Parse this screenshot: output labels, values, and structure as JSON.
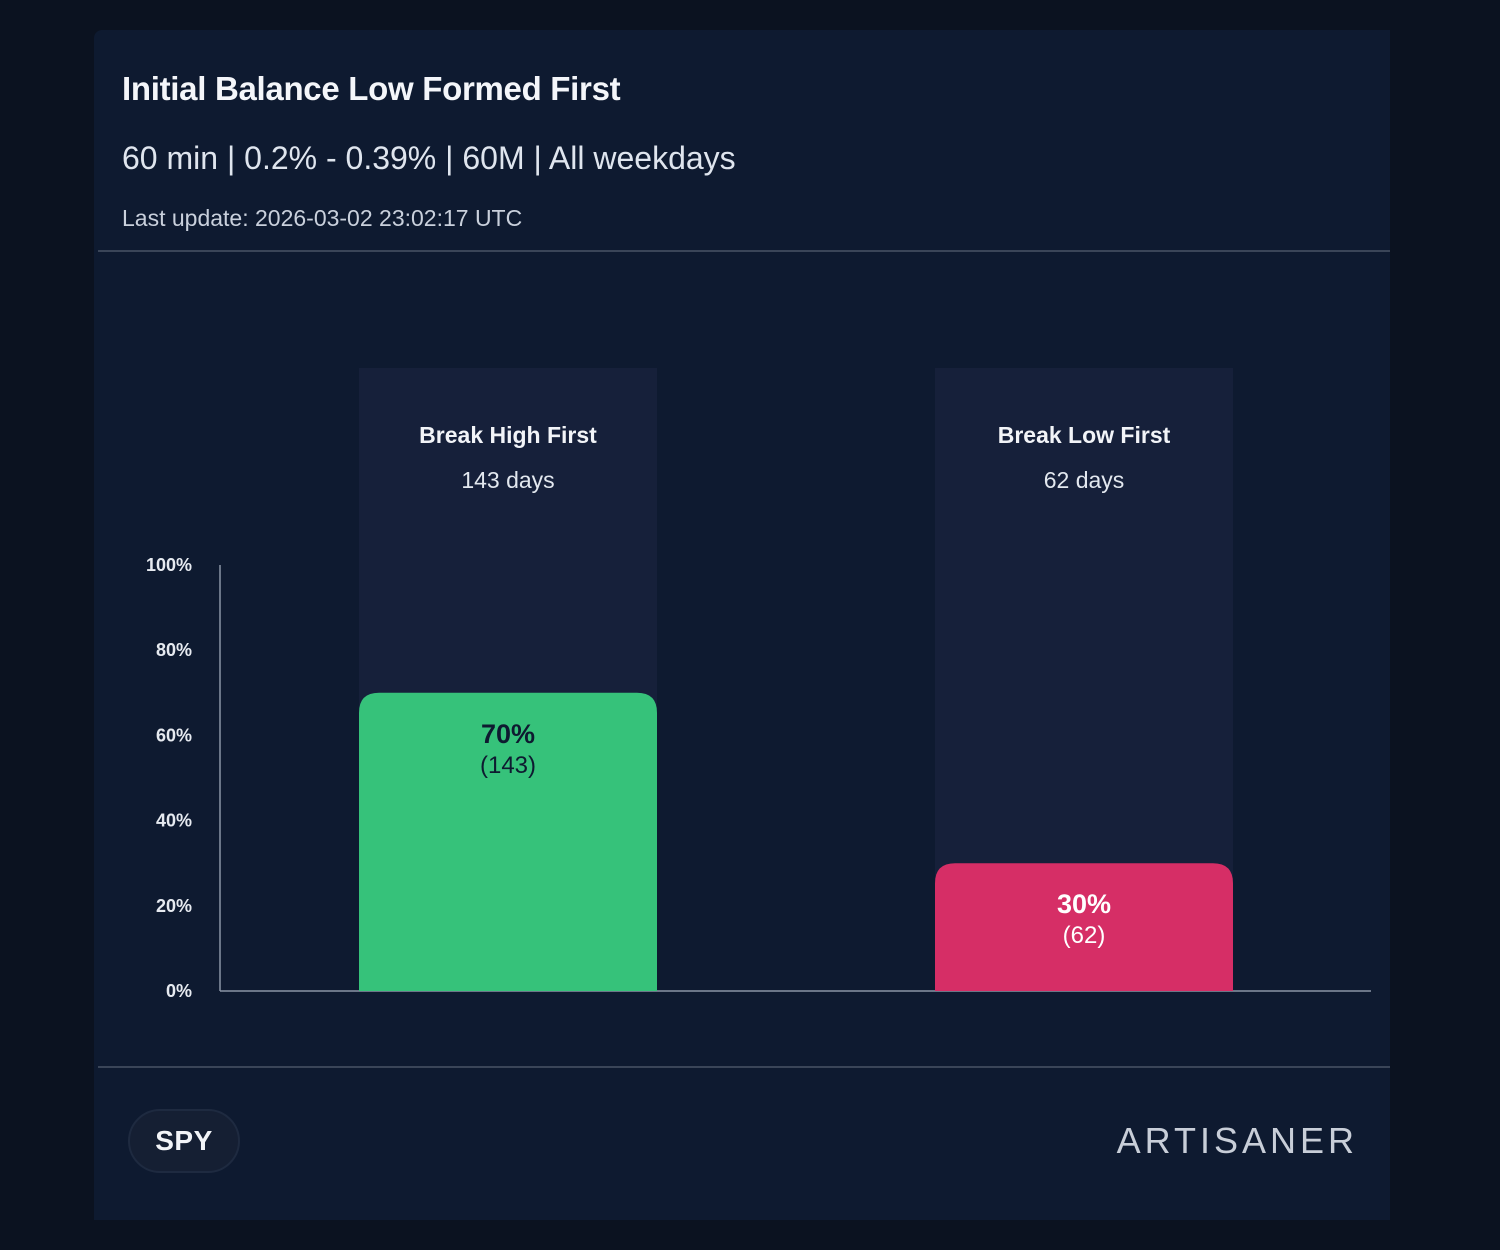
{
  "card": {
    "title": "Initial Balance Low Formed First",
    "subtitle": "60 min | 0.2% - 0.39% | 60M | All weekdays",
    "last_update": "Last update: 2026-03-02 23:02:17 UTC"
  },
  "footer": {
    "ticker": "SPY",
    "brand": "ARTISANER"
  },
  "colors": {
    "background": "#0b1220",
    "card": "#0e1a30",
    "track": "#16203a",
    "high": "#36c27a",
    "low": "#d62e66"
  },
  "chart_data": {
    "type": "bar",
    "categories": [
      "Break High First",
      "Break Low First"
    ],
    "category_subtitles": [
      "143 days",
      "62 days"
    ],
    "values": [
      70,
      30
    ],
    "counts": [
      "(143)",
      "(62)"
    ],
    "value_labels": [
      "70%",
      "30%"
    ],
    "bar_colors": [
      "#36c27a",
      "#d62e66"
    ],
    "value_label_colors": [
      "#0e1a30",
      "#ffffff"
    ],
    "yticks": [
      0,
      20,
      40,
      60,
      80,
      100
    ],
    "ytick_labels": [
      "0%",
      "20%",
      "40%",
      "60%",
      "80%",
      "100%"
    ],
    "ylim": [
      0,
      100
    ],
    "grid": false,
    "title": "",
    "xlabel": "",
    "ylabel": ""
  }
}
